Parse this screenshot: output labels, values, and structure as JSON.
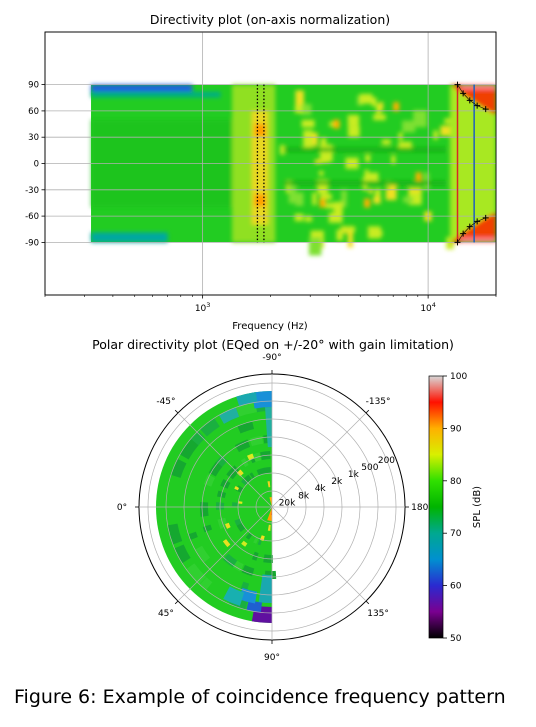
{
  "caption": "Figure 6: Example of coincidence frequency pattern",
  "chart_data": [
    {
      "type": "heatmap",
      "title": "Directivity plot (on-axis normalization)",
      "xlabel": "Frequency (Hz)",
      "ylabel": "",
      "xscale": "log",
      "xlim": [
        200,
        20000
      ],
      "ylim": [
        -150,
        150
      ],
      "data_x_range": [
        320,
        20000
      ],
      "data_y_range": [
        -90,
        90
      ],
      "x_ticks": [
        {
          "value": 1000,
          "base": "10",
          "exp": "3"
        },
        {
          "value": 10000,
          "base": "10",
          "exp": "4"
        }
      ],
      "y_ticks": [
        90,
        60,
        30,
        0,
        -30,
        -60,
        -90
      ],
      "grid": true,
      "colormap": "nipy_spectral",
      "vertical_lines": [
        {
          "x": 1750,
          "style": "dotted",
          "color": "#000000"
        },
        {
          "x": 1870,
          "style": "dotted",
          "color": "#000000"
        },
        {
          "x": 13500,
          "style": "solid",
          "color": "#d62728"
        },
        {
          "x": 16000,
          "style": "solid",
          "color": "#1f5fbf"
        }
      ],
      "markers": [
        {
          "x": 13500,
          "y": 90
        },
        {
          "x": 14300,
          "y": 80
        },
        {
          "x": 15300,
          "y": 72
        },
        {
          "x": 16500,
          "y": 66
        },
        {
          "x": 18000,
          "y": 62
        },
        {
          "x": 13500,
          "y": -90
        },
        {
          "x": 14300,
          "y": -80
        },
        {
          "x": 15300,
          "y": -72
        },
        {
          "x": 16500,
          "y": -66
        },
        {
          "x": 18000,
          "y": -62
        }
      ]
    },
    {
      "type": "heatmap",
      "title": "Polar directivity plot (EQed on +/-20° with gain limitation)",
      "projection": "polar",
      "angle_labels": [
        {
          "deg": -90,
          "label": "-90°"
        },
        {
          "deg": -135,
          "label": "-135°"
        },
        {
          "deg": 180,
          "label": "180°"
        },
        {
          "deg": 135,
          "label": "135°"
        },
        {
          "deg": 90,
          "label": "90°"
        },
        {
          "deg": 45,
          "label": "45°"
        },
        {
          "deg": 0,
          "label": "0°"
        },
        {
          "deg": -45,
          "label": "-45°"
        }
      ],
      "radial_labels": [
        "20k",
        "8k",
        "4k",
        "2k",
        "1k",
        "500",
        "200"
      ],
      "angle_range": [
        -90,
        90
      ],
      "colorbar": {
        "label": "SPL (dB)",
        "min": 50,
        "max": 100,
        "ticks": [
          50,
          60,
          70,
          80,
          90,
          100
        ]
      },
      "colormap": "nipy_spectral"
    }
  ]
}
